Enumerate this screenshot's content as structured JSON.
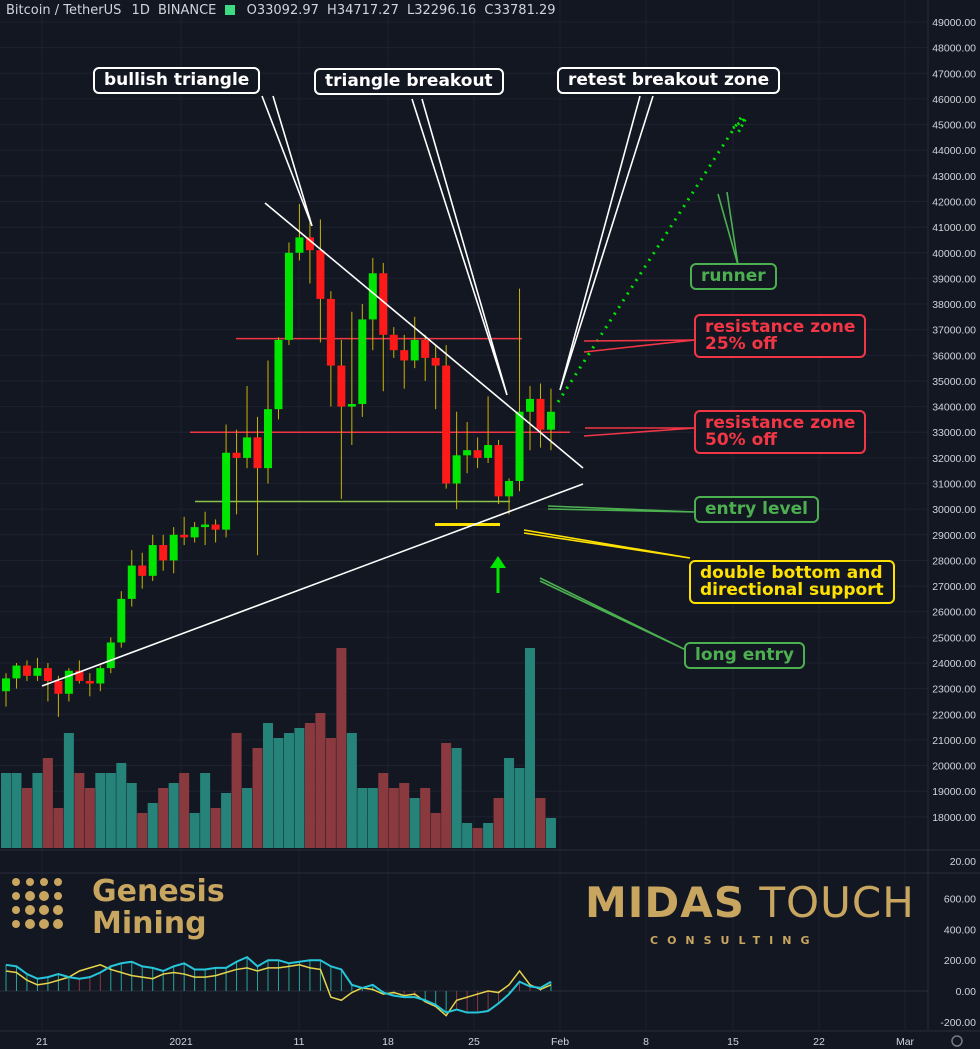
{
  "header": {
    "symbol": "Bitcoin / TetherUS",
    "interval": "1D",
    "exchange": "BINANCE",
    "open": "O33092.97",
    "high": "H34717.27",
    "low": "L32296.16",
    "close": "C33781.29"
  },
  "callouts": {
    "bullish_triangle": "bullish triangle",
    "triangle_breakout": "triangle breakout",
    "retest_breakout_zone": "retest breakout zone",
    "runner": "runner",
    "resistance_25_line1": "resistance zone",
    "resistance_25_line2": "25% off",
    "resistance_50_line1": "resistance zone",
    "resistance_50_line2": "50% off",
    "entry_level": "entry level",
    "double_bottom_line1": "double bottom and",
    "double_bottom_line2": "directional support",
    "long_entry": "long entry"
  },
  "logos": {
    "genesis_line1": "Genesis",
    "genesis_line2": "Mining",
    "midas_bold": "MIDAS",
    "midas_light": "TOUCH",
    "consulting": "CONSULTING"
  },
  "colors": {
    "up": "#00e600",
    "down": "#ff1a1a",
    "wick": "#c8b400",
    "vol_up": "#26837a",
    "vol_down": "#8a3a3f",
    "resistance": "#f23645",
    "entry": "#8bc34a",
    "support_yellow": "#ffe100",
    "triangle": "#ffffff",
    "osc_cyan": "#26c6da",
    "osc_yellow": "#e6d44a"
  },
  "chart_data": {
    "type": "candlestick",
    "x_tick_labels": [
      "21",
      "2021",
      "11",
      "18",
      "25",
      "Feb",
      "8",
      "15",
      "22",
      "Mar"
    ],
    "price_axis_ticks": [
      "49000.00",
      "48000.00",
      "47000.00",
      "46000.00",
      "45000.00",
      "44000.00",
      "43000.00",
      "42000.00",
      "41000.00",
      "40000.00",
      "39000.00",
      "38000.00",
      "37000.00",
      "36000.00",
      "35000.00",
      "34000.00",
      "33000.00",
      "32000.00",
      "31000.00",
      "30000.00",
      "29000.00",
      "28000.00",
      "27000.00",
      "26000.00",
      "25000.00",
      "24000.00",
      "23000.00",
      "22000.00",
      "21000.00",
      "20000.00",
      "19000.00",
      "18000.00"
    ],
    "volume_axis_top_label": "20.00",
    "oscillator_axis_ticks": [
      "600.00",
      "400.00",
      "200.00",
      "0.00",
      "-200.00"
    ],
    "price_range": [
      17000,
      49500
    ],
    "oscillator_range": [
      -250,
      700
    ],
    "levels": {
      "resistance_25": 36650,
      "resistance_50": 33000,
      "entry": 30300,
      "double_bottom": 29400
    },
    "candles": [
      [
        22900,
        23600,
        22300,
        23400
      ],
      [
        23400,
        24000,
        23000,
        23900
      ],
      [
        23900,
        24100,
        23300,
        23500
      ],
      [
        23500,
        24200,
        23300,
        23800
      ],
      [
        23800,
        24000,
        22500,
        23300
      ],
      [
        23300,
        23500,
        21900,
        22800
      ],
      [
        22800,
        23800,
        22500,
        23700
      ],
      [
        23700,
        24100,
        23200,
        23300
      ],
      [
        23300,
        23600,
        22700,
        23200
      ],
      [
        23200,
        23900,
        22900,
        23800
      ],
      [
        23800,
        25000,
        23600,
        24800
      ],
      [
        24800,
        26800,
        24600,
        26500
      ],
      [
        26500,
        28400,
        26200,
        27800
      ],
      [
        27800,
        28300,
        26900,
        27400
      ],
      [
        27400,
        29000,
        27200,
        28600
      ],
      [
        28600,
        29000,
        27600,
        28000
      ],
      [
        28000,
        29300,
        27500,
        29000
      ],
      [
        29000,
        29700,
        28600,
        28900
      ],
      [
        28900,
        29500,
        28700,
        29300
      ],
      [
        29300,
        29900,
        28600,
        29400
      ],
      [
        29400,
        29600,
        28700,
        29200
      ],
      [
        29200,
        33300,
        28900,
        32200
      ],
      [
        32200,
        33100,
        29800,
        32000
      ],
      [
        32000,
        34800,
        31600,
        32800
      ],
      [
        32800,
        33600,
        28200,
        31600
      ],
      [
        31600,
        35800,
        31000,
        33900
      ],
      [
        33900,
        36700,
        33500,
        36600
      ],
      [
        36600,
        40400,
        36400,
        40000
      ],
      [
        40000,
        41900,
        39700,
        40600
      ],
      [
        40600,
        41400,
        38800,
        40100
      ],
      [
        40100,
        41300,
        36500,
        38200
      ],
      [
        38200,
        38500,
        34000,
        35600
      ],
      [
        35600,
        36600,
        30400,
        34000
      ],
      [
        34000,
        37700,
        32500,
        34100
      ],
      [
        34100,
        38000,
        33600,
        37400
      ],
      [
        37400,
        39800,
        36200,
        39200
      ],
      [
        39200,
        39600,
        34600,
        36800
      ],
      [
        36800,
        37100,
        35900,
        36200
      ],
      [
        36200,
        36800,
        34700,
        35800
      ],
      [
        35800,
        37500,
        35500,
        36600
      ],
      [
        36600,
        36800,
        35000,
        35900
      ],
      [
        35900,
        36400,
        33900,
        35600
      ],
      [
        35600,
        36400,
        30800,
        31000
      ],
      [
        31000,
        33800,
        30000,
        32100
      ],
      [
        32100,
        33400,
        31400,
        32300
      ],
      [
        32300,
        32800,
        31600,
        32000
      ],
      [
        32000,
        34400,
        31800,
        32500
      ],
      [
        32500,
        32700,
        30200,
        30500
      ],
      [
        30500,
        31200,
        29800,
        31100
      ],
      [
        31100,
        38600,
        30700,
        33800
      ],
      [
        33800,
        34800,
        32300,
        34300
      ],
      [
        34300,
        34900,
        32400,
        33100
      ],
      [
        33100,
        34700,
        32300,
        33800
      ]
    ],
    "volumes": [
      0.55,
      0.55,
      0.52,
      0.55,
      0.58,
      0.48,
      0.63,
      0.55,
      0.52,
      0.55,
      0.55,
      0.57,
      0.53,
      0.47,
      0.49,
      0.52,
      0.53,
      0.55,
      0.47,
      0.55,
      0.48,
      0.51,
      0.63,
      0.52,
      0.6,
      0.65,
      0.62,
      0.63,
      0.64,
      0.65,
      0.67,
      0.62,
      0.8,
      0.63,
      0.52,
      0.52,
      0.55,
      0.52,
      0.53,
      0.5,
      0.52,
      0.47,
      0.61,
      0.6,
      0.45,
      0.44,
      0.45,
      0.5,
      0.58,
      0.56,
      0.8,
      0.5,
      0.46
    ],
    "oscillator_cyan": [
      170,
      160,
      110,
      80,
      90,
      110,
      90,
      80,
      90,
      120,
      160,
      180,
      190,
      160,
      150,
      130,
      160,
      180,
      140,
      140,
      150,
      150,
      190,
      220,
      160,
      200,
      200,
      180,
      190,
      200,
      200,
      160,
      140,
      40,
      20,
      40,
      -10,
      -30,
      -40,
      -40,
      -60,
      -90,
      -140,
      -120,
      -140,
      -140,
      -130,
      -80,
      -20,
      60,
      30,
      20,
      60
    ],
    "oscillator_yellow": [
      130,
      120,
      70,
      40,
      50,
      70,
      90,
      130,
      150,
      170,
      140,
      120,
      100,
      90,
      80,
      110,
      120,
      110,
      90,
      90,
      100,
      120,
      140,
      150,
      130,
      150,
      150,
      160,
      170,
      150,
      140,
      -40,
      -60,
      -10,
      20,
      10,
      -20,
      -10,
      -30,
      -20,
      -70,
      -100,
      -160,
      -60,
      -40,
      -20,
      0,
      -10,
      40,
      130,
      40,
      10,
      40
    ]
  }
}
